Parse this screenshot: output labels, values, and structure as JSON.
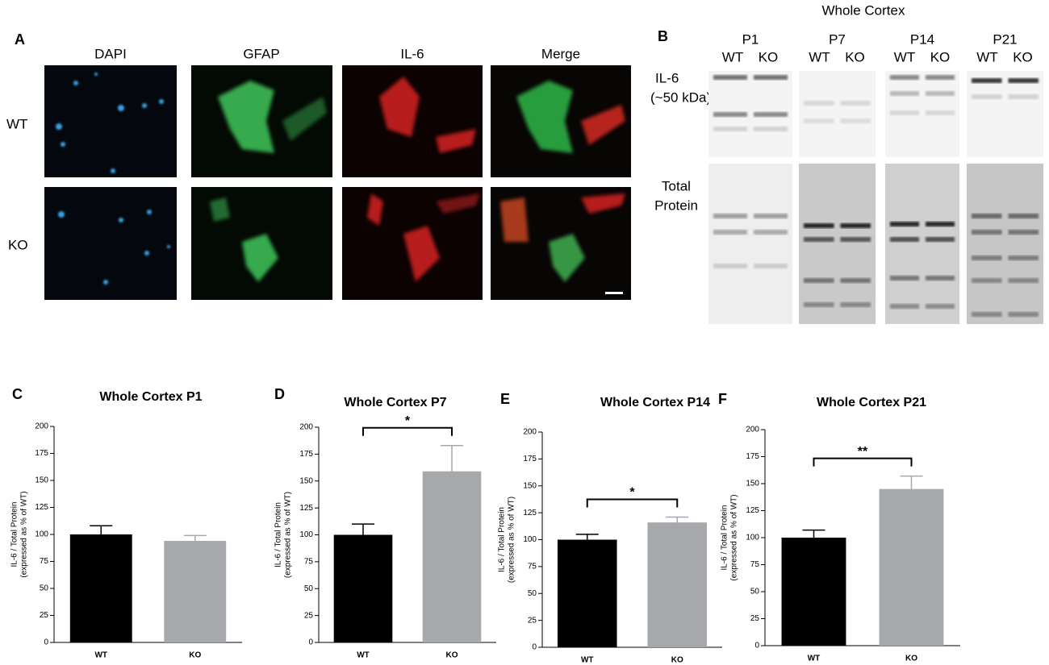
{
  "panel_a": {
    "label": "A",
    "columns": [
      "DAPI",
      "GFAP",
      "IL-6",
      "Merge"
    ],
    "rows": [
      "WT",
      "KO"
    ]
  },
  "panel_b": {
    "label": "B",
    "title": "Whole Cortex",
    "lanes": [
      {
        "age": "P1",
        "groups": [
          "WT",
          "KO"
        ]
      },
      {
        "age": "P7",
        "groups": [
          "WT",
          "KO"
        ]
      },
      {
        "age": "P14",
        "groups": [
          "WT",
          "KO"
        ]
      },
      {
        "age": "P21",
        "groups": [
          "WT",
          "KO"
        ]
      }
    ],
    "rows": [
      [
        "IL-6",
        "(~50 kDa)"
      ],
      [
        "Total",
        "Protein"
      ]
    ]
  },
  "chart_data": [
    {
      "type": "bar",
      "panel": "C",
      "title": "Whole Cortex P1",
      "ylabel": [
        "IL-6 / Total Protein",
        "(expressed as % of WT)"
      ],
      "categories": [
        "WT",
        "KO"
      ],
      "values": [
        100,
        94
      ],
      "errors": [
        8,
        5
      ],
      "colors": [
        "#000000",
        "#a7a8ab"
      ],
      "ylim": [
        0,
        200
      ],
      "yticks": [
        0,
        25,
        50,
        75,
        100,
        125,
        150,
        175,
        200
      ]
    },
    {
      "type": "bar",
      "panel": "D",
      "title": "Whole Cortex P7",
      "ylabel": [
        "IL-6 / Total Protein",
        "(expressed as % of WT)"
      ],
      "categories": [
        "WT",
        "KO"
      ],
      "values": [
        100,
        159
      ],
      "errors": [
        10,
        24
      ],
      "colors": [
        "#000000",
        "#a7a8ab"
      ],
      "ylim": [
        0,
        200
      ],
      "yticks": [
        0,
        25,
        50,
        75,
        100,
        125,
        150,
        175,
        200
      ],
      "significance": "*"
    },
    {
      "type": "bar",
      "panel": "E",
      "title": "Whole Cortex P14",
      "ylabel": [
        "IL-6 / Total Protein",
        "(expressed as % of WT)"
      ],
      "categories": [
        "WT",
        "KO"
      ],
      "values": [
        100,
        116
      ],
      "errors": [
        5,
        5
      ],
      "colors": [
        "#000000",
        "#a7a8ab"
      ],
      "ylim": [
        0,
        200
      ],
      "yticks": [
        0,
        25,
        50,
        75,
        100,
        125,
        150,
        175,
        200
      ],
      "significance": "*"
    },
    {
      "type": "bar",
      "panel": "F",
      "title": "Whole Cortex P21",
      "ylabel": [
        "IL-6 / Total Protein",
        "(expressed as % of WT)"
      ],
      "categories": [
        "WT",
        "KO"
      ],
      "values": [
        100,
        145
      ],
      "errors": [
        7,
        12
      ],
      "colors": [
        "#000000",
        "#a7a8ab"
      ],
      "ylim": [
        0,
        200
      ],
      "yticks": [
        0,
        25,
        50,
        75,
        100,
        125,
        150,
        175,
        200
      ],
      "significance": "**"
    }
  ]
}
